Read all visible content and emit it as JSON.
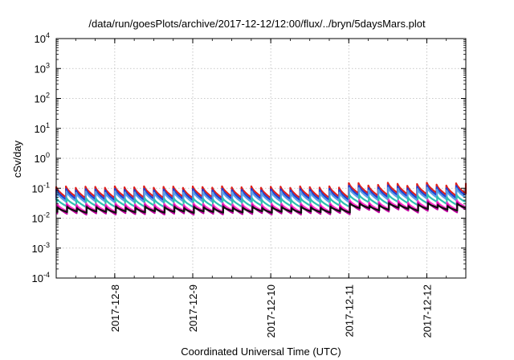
{
  "chart_data": {
    "type": "line",
    "title": "/data/run/goesPlots/archive/2017-12-12/12:00/flux/../bryn/5daysMars.plot",
    "xlabel": "Coordinated Universal Time (UTC)",
    "ylabel": "cSv/day",
    "x_range": [
      "2017-12-07T06:00",
      "2017-12-12T12:00"
    ],
    "x_ticks": [
      "2017-12-8",
      "2017-12-9",
      "2017-12-10",
      "2017-12-11",
      "2017-12-12"
    ],
    "y_scale": "log",
    "y_range": [
      0.0001,
      10000
    ],
    "y_ticks": [
      {
        "base": "10",
        "exp": "-4"
      },
      {
        "base": "10",
        "exp": "-3"
      },
      {
        "base": "10",
        "exp": "-2"
      },
      {
        "base": "10",
        "exp": "-1"
      },
      {
        "base": "10",
        "exp": "0"
      },
      {
        "base": "10",
        "exp": "1"
      },
      {
        "base": "10",
        "exp": "2"
      },
      {
        "base": "10",
        "exp": "3"
      },
      {
        "base": "10",
        "exp": "4"
      }
    ],
    "grid": true,
    "legend": "none",
    "series_shape": "sawtooth, approx. 8 cycles per day, value falls then jumps back each cycle",
    "series": [
      {
        "color": "#e0201b",
        "peak": 0.11,
        "trough": 0.05
      },
      {
        "color": "#1f3fd4",
        "peak": 0.09,
        "trough": 0.042
      },
      {
        "color": "#5aa0e6",
        "peak": 0.075,
        "trough": 0.035
      },
      {
        "color": "#2fbfb0",
        "peak": 0.045,
        "trough": 0.025
      },
      {
        "color": "#ff33cc",
        "peak": 0.03,
        "trough": 0.017
      },
      {
        "color": "#c000a0",
        "peak": 0.026,
        "trough": 0.014
      },
      {
        "color": "#111111",
        "peak": 0.023,
        "trough": 0.016
      }
    ],
    "late_period_enhancement": {
      "from": "2017-12-11T00:00",
      "factor": 1.25
    }
  }
}
